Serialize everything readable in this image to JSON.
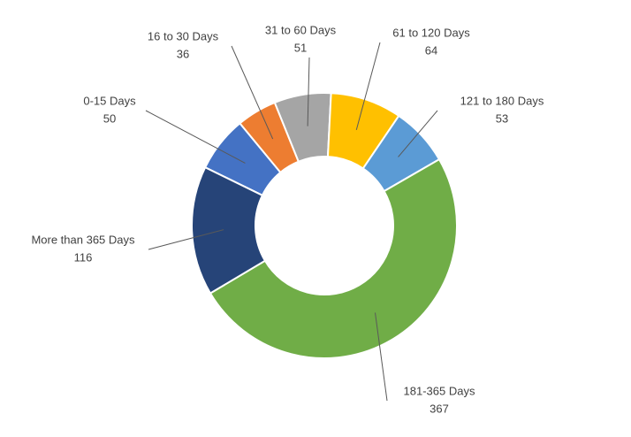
{
  "chart_data": {
    "type": "donut",
    "categories": [
      "0-15 Days",
      "16 to 30 Days",
      "31 to 60 Days",
      "61 to 120 Days",
      "121 to 180 Days",
      "181-365 Days",
      "More than 365 Days"
    ],
    "values": [
      50,
      36,
      51,
      64,
      53,
      367,
      116
    ],
    "colors": [
      "#4472c4",
      "#ed7d31",
      "#a5a5a5",
      "#ffc000",
      "#5b9bd5",
      "#70ad47",
      "#264478"
    ]
  }
}
